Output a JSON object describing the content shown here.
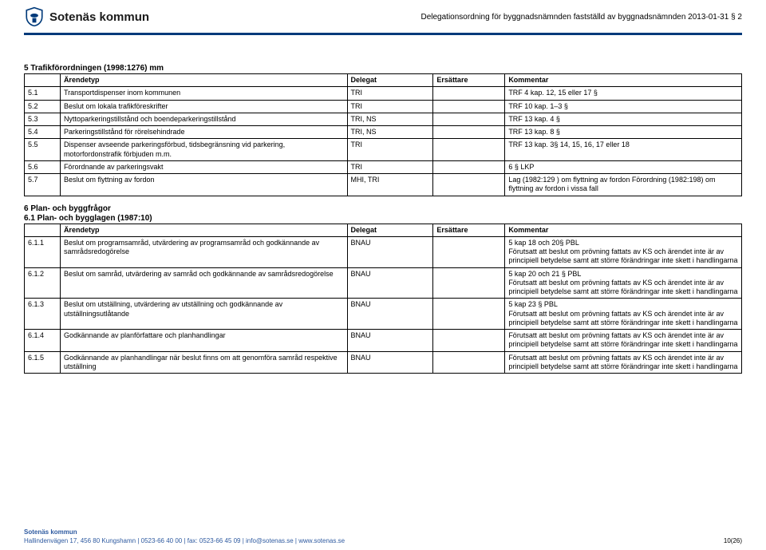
{
  "header": {
    "logo_text": "Sotenäs kommun",
    "doc_title": "Delegationsordning för byggnadsnämnden fastställd av byggnadsnämnden 2013-01-31 § 2"
  },
  "section5": {
    "title": "5 Trafikförordningen (1998:1276) mm",
    "cols": [
      "Ärendetyp",
      "Delegat",
      "Ersättare",
      "Kommentar"
    ],
    "rows": [
      {
        "n": "5.1",
        "desc": "Transportdispenser inom kommunen",
        "del": "TRI",
        "ers": "",
        "kom": "TRF  4 kap. 12, 15 eller 17 §"
      },
      {
        "n": "5.2",
        "desc": "Beslut om lokala trafikföreskrifter",
        "del": "TRI",
        "ers": "",
        "kom": "TRF 10 kap. 1–3 §"
      },
      {
        "n": "5.3",
        "desc": "Nyttoparkeringstillstånd och boendeparkeringstillstånd",
        "del": "TRI, NS",
        "ers": "",
        "kom": "TRF 13 kap. 4 §"
      },
      {
        "n": "5.4",
        "desc": "Parkeringstillstånd för rörelsehindrade",
        "del": "TRI, NS",
        "ers": "",
        "kom": "TRF 13 kap. 8 §"
      },
      {
        "n": "5.5",
        "desc": "Dispenser avseende parkeringsförbud, tidsbegränsning vid parkering, motorfordonstrafik förbjuden m.m.",
        "del": "TRI",
        "ers": "",
        "kom": "TRF 13 kap. 3§ 14, 15, 16, 17 eller 18"
      },
      {
        "n": "5.6",
        "desc": "Förordnande av parkeringsvakt",
        "del": "TRI",
        "ers": "",
        "kom": "6 § LKP"
      },
      {
        "n": "5.7",
        "desc": "Beslut om flyttning av fordon",
        "del": "MHI, TRI",
        "ers": "",
        "kom": "Lag (1982:129 ) om flyttning av fordon Förordning (1982:198) om flyttning av fordon i vissa fall"
      }
    ]
  },
  "section6": {
    "title": "6 Plan- och byggfrågor",
    "subtitle": "6.1 Plan- och bygglagen (1987:10)",
    "cols": [
      "Ärendetyp",
      "Delegat",
      "Ersättare",
      "Kommentar"
    ],
    "rows": [
      {
        "n": "6.1.1",
        "desc": "Beslut om programsamråd, utvärdering av programsamråd och godkännande av samrådsredogörelse",
        "del": "BNAU",
        "ers": "",
        "kom": "5 kap 18 och 20§ PBL\nFörutsatt att beslut om prövning fattats av KS och ärendet inte är av principiell betydelse samt att större förändringar inte skett i handlingarna"
      },
      {
        "n": "6.1.2",
        "desc": "Beslut om samråd, utvärdering av samråd och godkännande av samrådsredogörelse",
        "del": "BNAU",
        "ers": "",
        "kom": "5 kap 20 och 21 § PBL\nFörutsatt att beslut om prövning fattats av KS och ärendet inte är av principiell betydelse samt att större förändringar inte skett i handlingarna"
      },
      {
        "n": "6.1.3",
        "desc": "Beslut om utställning, utvärdering av utställning och godkännande av utställningsutlåtande",
        "del": "BNAU",
        "ers": "",
        "kom": "5 kap 23 § PBL\nFörutsatt att beslut om prövning fattats av KS och ärendet inte är av principiell betydelse samt att större förändringar inte skett i handlingarna"
      },
      {
        "n": "6.1.4",
        "desc": "Godkännande av planförfattare och planhandlingar",
        "del": "BNAU",
        "ers": "",
        "kom": "Förutsatt att beslut om prövning fattats av KS och ärendet inte är av principiell betydelse samt att större förändringar inte skett i handlingarna"
      },
      {
        "n": "6.1.5",
        "desc": "Godkännande av planhandlingar när beslut finns om att genomföra samråd respektive utställning",
        "del": "BNAU",
        "ers": "",
        "kom": "Förutsatt att beslut om prövning fattats av KS och ärendet inte är av principiell betydelse samt att större förändringar inte skett i handlingarna"
      }
    ]
  },
  "footer": {
    "org": "Sotenäs kommun",
    "line": "Hallindenvägen 17, 456 80 Kungshamn | 0523-66 40 00 | fax: 0523-66 45 09 | info@sotenas.se | www.sotenas.se",
    "page": "10(26)"
  },
  "colors": {
    "brand": "#003a7a",
    "footer_text": "#2e5aa0",
    "border": "#000000",
    "bg": "#ffffff",
    "text": "#000000"
  }
}
